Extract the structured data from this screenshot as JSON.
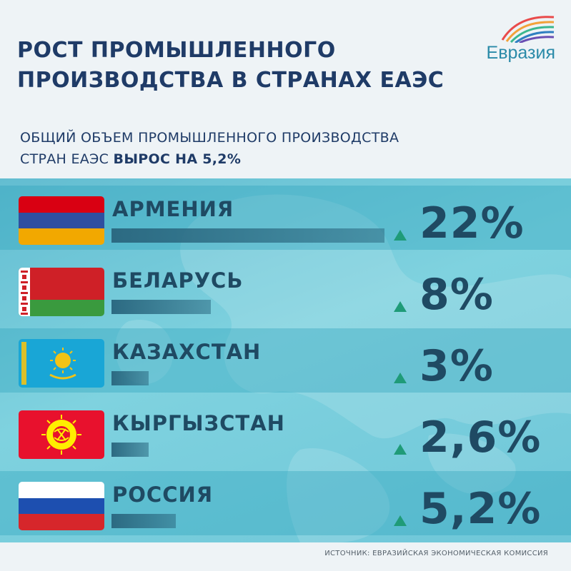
{
  "title_lines": [
    "РОСТ ПРОМЫШЛЕННОГО",
    "ПРОИЗВОДСТВА В СТРАНАХ ЕАЭС"
  ],
  "logo_text": "Евразия",
  "subtitle": {
    "line1": "ОБЩИЙ ОБЪЕМ ПРОМЫШЛЕННОГО ПРОИЗВОДСТВА",
    "line2_prefix": "СТРАН ЕАЭС ",
    "line2_bold": "ВЫРОС НА 5,2%"
  },
  "source": "ИСТОЧНИК: ЕВРАЗИЙСКАЯ ЭКОНОМИЧЕСКАЯ КОМИССИЯ",
  "colors": {
    "title": "#1f3b67",
    "accent_teal": "#2a8aa8",
    "bar": "#2c6a82",
    "up_arrow": "#1f9b78",
    "value_text": "#1f4a63"
  },
  "chart_data": {
    "type": "bar",
    "orientation": "horizontal",
    "unit": "%",
    "xlim": [
      0,
      22
    ],
    "categories": [
      "АРМЕНИЯ",
      "БЕЛАРУСЬ",
      "КАЗАХСТАН",
      "КЫРГЫЗСТАН",
      "РОССИЯ"
    ],
    "values": [
      22,
      8,
      3,
      2.6,
      5.2
    ],
    "value_labels": [
      "22%",
      "8%",
      "3%",
      "2,6%",
      "5,2%"
    ],
    "flags": [
      "armenia-flag-icon",
      "belarus-flag-icon",
      "kazakhstan-flag-icon",
      "kyrgyzstan-flag-icon",
      "russia-flag-icon"
    ],
    "indicator": "up-arrow-icon"
  }
}
